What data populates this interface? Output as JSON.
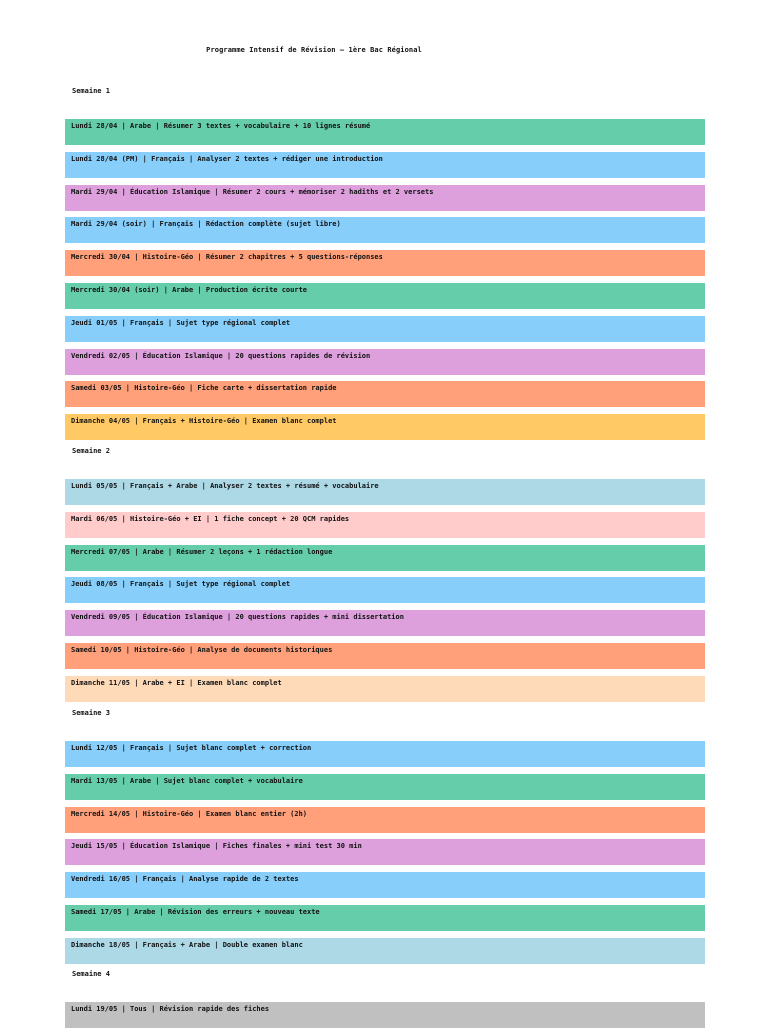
{
  "title": "Programme Intensif de Révision – 1ère Bac Régional",
  "colors": {
    "arabe": "#66cdaa",
    "francais": "#87cefa",
    "islamique": "#dda0dd",
    "histgeo": "#ffa07a",
    "examen": "#ffc966",
    "mixte_bleu": "#add8e6",
    "rose": "#ffcccb",
    "peche": "#ffdab9",
    "gris": "#c0c0c0"
  },
  "weeks": [
    {
      "label": "Semaine 1",
      "rows": [
        {
          "text": "Lundi 28/04 | Arabe | Résumer 3 textes + vocabulaire + 10 lignes résumé",
          "color": "#66cdaa"
        },
        {
          "text": "Lundi 28/04 (PM) | Français | Analyser 2 textes + rédiger une introduction",
          "color": "#87cefa"
        },
        {
          "text": "Mardi 29/04 | Éducation Islamique | Résumer 2 cours + mémoriser 2 hadiths et 2 versets",
          "color": "#dda0dd"
        },
        {
          "text": "Mardi 29/04 (soir) | Français | Rédaction complète (sujet libre)",
          "color": "#87cefa"
        },
        {
          "text": "Mercredi 30/04 | Histoire-Géo | Résumer 2 chapitres + 5 questions-réponses",
          "color": "#ffa07a"
        },
        {
          "text": "Mercredi 30/04 (soir) | Arabe | Production écrite courte",
          "color": "#66cdaa"
        },
        {
          "text": "Jeudi 01/05 | Français | Sujet type régional complet",
          "color": "#87cefa"
        },
        {
          "text": "Vendredi 02/05 | Éducation Islamique | 20 questions rapides de révision",
          "color": "#dda0dd"
        },
        {
          "text": "Samedi 03/05 | Histoire-Géo | Fiche carte + dissertation rapide",
          "color": "#ffa07a"
        },
        {
          "text": "Dimanche 04/05 | Français + Histoire-Géo | Examen blanc complet",
          "color": "#ffc966"
        }
      ]
    },
    {
      "label": "Semaine 2",
      "rows": [
        {
          "text": "Lundi 05/05 | Français + Arabe | Analyser 2 textes + résumé + vocabulaire",
          "color": "#add8e6"
        },
        {
          "text": "Mardi 06/05 | Histoire-Géo + EI | 1 fiche concept + 20 QCM rapides",
          "color": "#ffcccb"
        },
        {
          "text": "Mercredi 07/05 | Arabe | Résumer 2 leçons + 1 rédaction longue",
          "color": "#66cdaa"
        },
        {
          "text": "Jeudi 08/05 | Français | Sujet type régional complet",
          "color": "#87cefa"
        },
        {
          "text": "Vendredi 09/05 | Éducation Islamique | 20 questions rapides + mini dissertation",
          "color": "#dda0dd"
        },
        {
          "text": "Samedi 10/05 | Histoire-Géo | Analyse de documents historiques",
          "color": "#ffa07a"
        },
        {
          "text": "Dimanche 11/05 | Arabe + EI | Examen blanc complet",
          "color": "#ffdab9"
        }
      ]
    },
    {
      "label": "Semaine 3",
      "rows": [
        {
          "text": "Lundi 12/05 | Français | Sujet blanc complet + correction",
          "color": "#87cefa"
        },
        {
          "text": "Mardi 13/05 | Arabe | Sujet blanc complet + vocabulaire",
          "color": "#66cdaa"
        },
        {
          "text": "Mercredi 14/05 | Histoire-Géo | Examen blanc entier (2h)",
          "color": "#ffa07a"
        },
        {
          "text": "Jeudi 15/05 | Éducation Islamique | Fiches finales + mini test 30 min",
          "color": "#dda0dd"
        },
        {
          "text": "Vendredi 16/05 | Français | Analyse rapide de 2 textes",
          "color": "#87cefa"
        },
        {
          "text": "Samedi 17/05 | Arabe | Révision des erreurs + nouveau texte",
          "color": "#66cdaa"
        },
        {
          "text": "Dimanche 18/05 | Français + Arabe | Double examen blanc",
          "color": "#add8e6"
        }
      ]
    },
    {
      "label": "Semaine 4",
      "rows": [
        {
          "text": "Lundi 19/05 | Tous | Révision rapide des fiches",
          "color": "#c0c0c0"
        }
      ]
    }
  ]
}
